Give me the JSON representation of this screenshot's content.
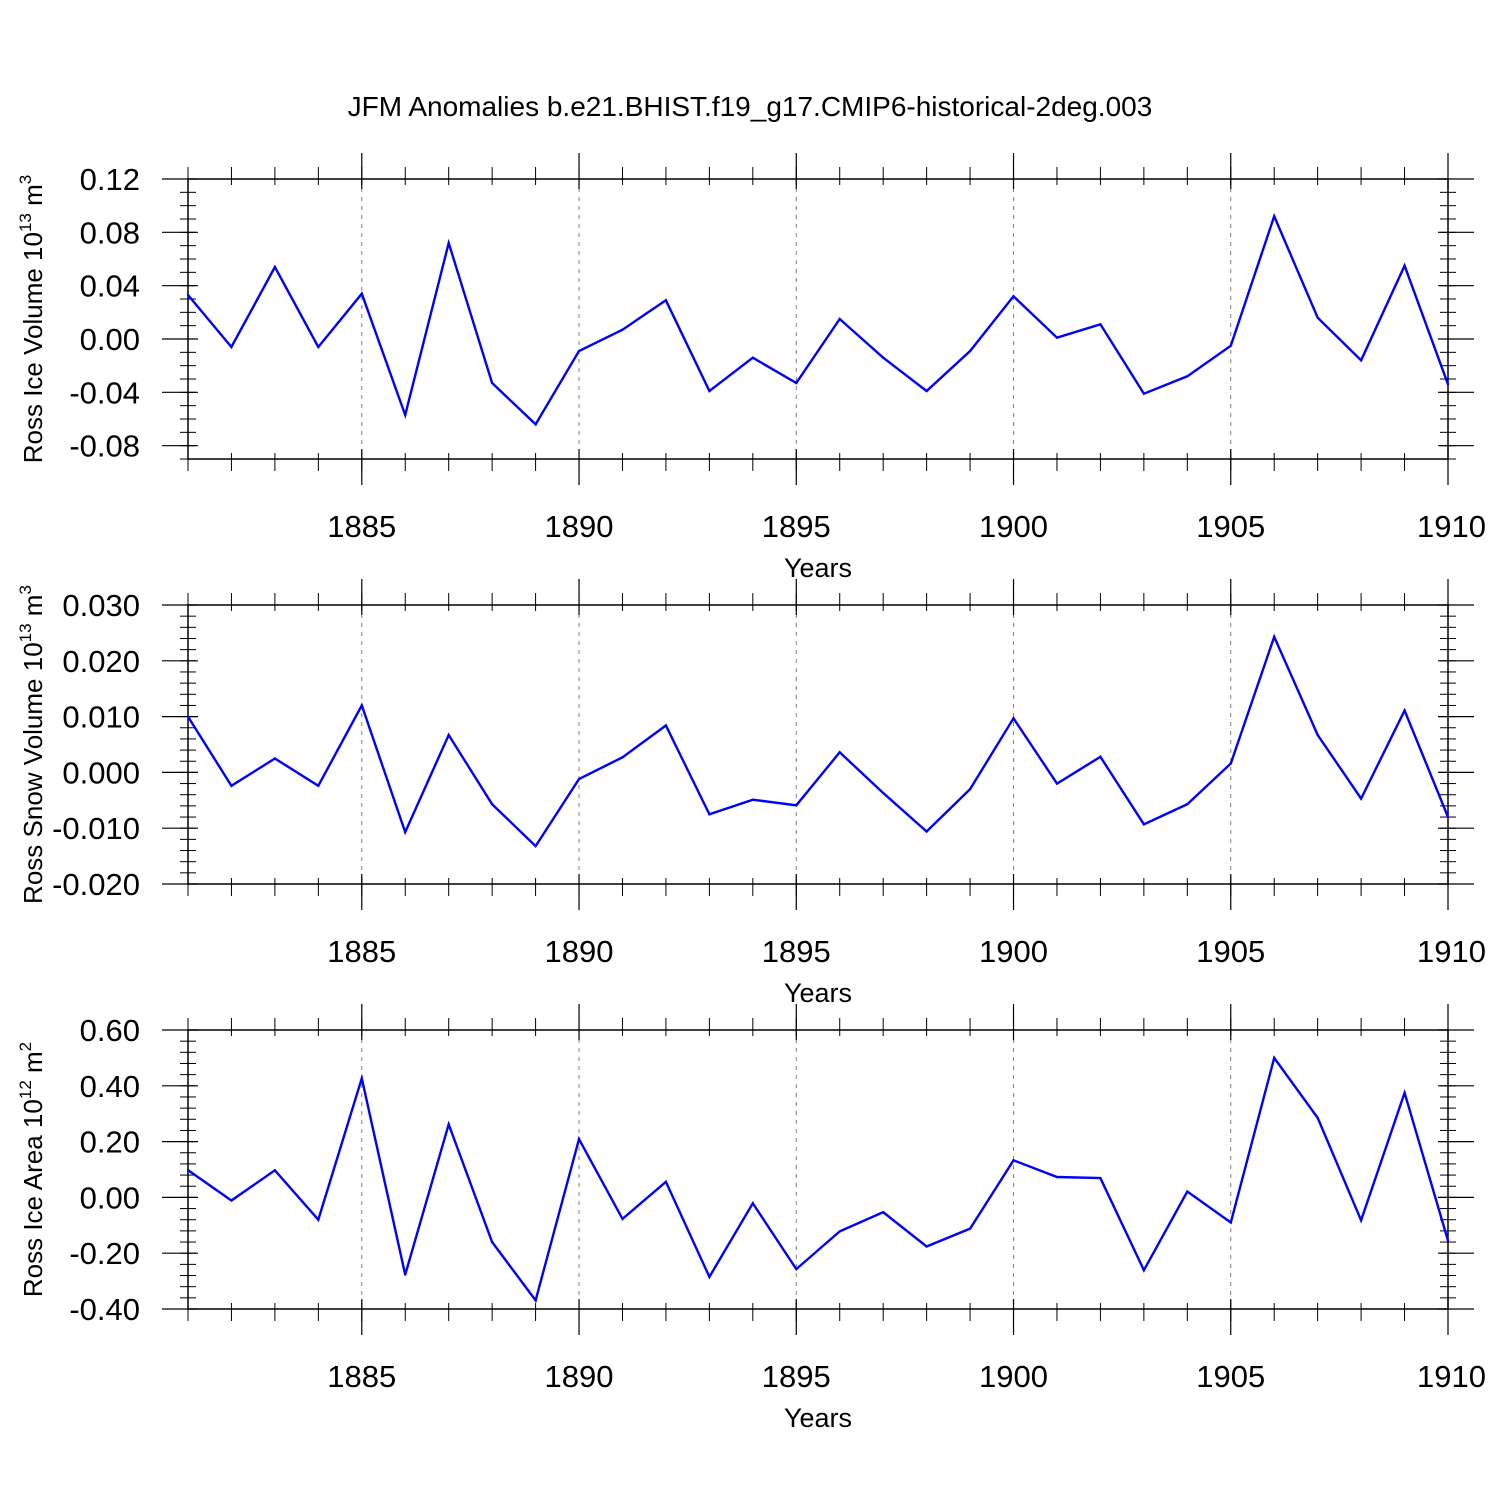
{
  "figure": {
    "title": "JFM Anomalies b.e21.BHIST.f19_g17.CMIP6-historical-2deg.003"
  },
  "style": {
    "line_color": "#0000ff",
    "axis_color": "#000000",
    "grid_color": "#808080"
  },
  "chart_data": [
    {
      "type": "line",
      "ylabel": "Ross Ice Volume 10",
      "ylabel_exp": "13",
      "ylabel_unit": " m",
      "ylabel_unit_exp": "3",
      "xlabel": "Years",
      "xlim": [
        1881,
        1910
      ],
      "ylim": [
        -0.09,
        0.12
      ],
      "y_ticks": [
        0.12,
        0.08,
        0.04,
        0.0,
        -0.04,
        -0.08
      ],
      "y_tick_labels": [
        "0.12",
        "0.08",
        "0.04",
        "0.00",
        "-0.04",
        "-0.08"
      ],
      "y_minor_step": 0.01,
      "x_ticks": [
        1885,
        1890,
        1895,
        1900,
        1905,
        1910
      ],
      "x_tick_labels": [
        "1885",
        "1890",
        "1895",
        "1900",
        "1905",
        "1910"
      ],
      "grid_x": [
        1885,
        1890,
        1895,
        1900,
        1905
      ],
      "series": [
        {
          "x": [
            1881,
            1882,
            1883,
            1884,
            1885,
            1886,
            1887,
            1888,
            1889,
            1890,
            1891,
            1892,
            1893,
            1894,
            1895,
            1896,
            1897,
            1898,
            1899,
            1900,
            1901,
            1902,
            1903,
            1904,
            1905,
            1906,
            1907,
            1908,
            1909,
            1910
          ],
          "values": [
            0.033,
            -0.006,
            0.054,
            -0.006,
            0.034,
            -0.057,
            0.072,
            -0.033,
            -0.064,
            -0.009,
            0.007,
            0.029,
            -0.039,
            -0.014,
            -0.033,
            0.015,
            -0.014,
            -0.039,
            -0.009,
            0.032,
            0.001,
            0.011,
            -0.041,
            -0.028,
            -0.005,
            0.092,
            0.016,
            -0.016,
            0.055,
            -0.034
          ]
        }
      ]
    },
    {
      "type": "line",
      "ylabel": "Ross Snow Volume 10",
      "ylabel_exp": "13",
      "ylabel_unit": " m",
      "ylabel_unit_exp": "3",
      "xlabel": "Years",
      "xlim": [
        1881,
        1910
      ],
      "ylim": [
        -0.02,
        0.03
      ],
      "y_ticks": [
        0.03,
        0.02,
        0.01,
        0.0,
        -0.01,
        -0.02
      ],
      "y_tick_labels": [
        "0.030",
        "0.020",
        "0.010",
        "0.000",
        "-0.010",
        "-0.020"
      ],
      "y_minor_step": 0.002,
      "x_ticks": [
        1885,
        1890,
        1895,
        1900,
        1905,
        1910
      ],
      "x_tick_labels": [
        "1885",
        "1890",
        "1895",
        "1900",
        "1905",
        "1910"
      ],
      "grid_x": [
        1885,
        1890,
        1895,
        1900,
        1905
      ],
      "series": [
        {
          "x": [
            1881,
            1882,
            1883,
            1884,
            1885,
            1886,
            1887,
            1888,
            1889,
            1890,
            1891,
            1892,
            1893,
            1894,
            1895,
            1896,
            1897,
            1898,
            1899,
            1900,
            1901,
            1902,
            1903,
            1904,
            1905,
            1906,
            1907,
            1908,
            1909,
            1910
          ],
          "values": [
            0.01,
            -0.0024,
            0.0025,
            -0.0024,
            0.012,
            -0.0107,
            0.0067,
            -0.0057,
            -0.0132,
            -0.0012,
            0.0027,
            0.0084,
            -0.0075,
            -0.0049,
            -0.0059,
            0.0036,
            -0.0037,
            -0.0106,
            -0.003,
            0.0097,
            -0.002,
            0.0028,
            -0.0093,
            -0.0057,
            0.0016,
            0.0243,
            0.0067,
            -0.0047,
            0.0111,
            -0.008
          ]
        }
      ]
    },
    {
      "type": "line",
      "ylabel": "Ross Ice Area 10",
      "ylabel_exp": "12",
      "ylabel_unit": " m",
      "ylabel_unit_exp": "2",
      "xlabel": "Years",
      "xlim": [
        1881,
        1910
      ],
      "ylim": [
        -0.4,
        0.6
      ],
      "y_ticks": [
        0.6,
        0.4,
        0.2,
        0.0,
        -0.2,
        -0.4
      ],
      "y_tick_labels": [
        "0.60",
        "0.40",
        "0.20",
        "0.00",
        "-0.20",
        "-0.40"
      ],
      "y_minor_step": 0.04,
      "x_ticks": [
        1885,
        1890,
        1895,
        1900,
        1905,
        1910
      ],
      "x_tick_labels": [
        "1885",
        "1890",
        "1895",
        "1900",
        "1905",
        "1910"
      ],
      "grid_x": [
        1885,
        1890,
        1895,
        1900,
        1905
      ],
      "series": [
        {
          "x": [
            1881,
            1882,
            1883,
            1884,
            1885,
            1886,
            1887,
            1888,
            1889,
            1890,
            1891,
            1892,
            1893,
            1894,
            1895,
            1896,
            1897,
            1898,
            1899,
            1900,
            1901,
            1902,
            1903,
            1904,
            1905,
            1906,
            1907,
            1908,
            1909,
            1910
          ],
          "values": [
            0.098,
            -0.011,
            0.097,
            -0.08,
            0.427,
            -0.277,
            0.262,
            -0.16,
            -0.369,
            0.209,
            -0.077,
            0.056,
            -0.285,
            -0.021,
            -0.257,
            -0.122,
            -0.053,
            -0.176,
            -0.112,
            0.133,
            0.073,
            0.069,
            -0.261,
            0.021,
            -0.09,
            0.5,
            0.285,
            -0.082,
            0.375,
            -0.155
          ]
        }
      ]
    }
  ]
}
